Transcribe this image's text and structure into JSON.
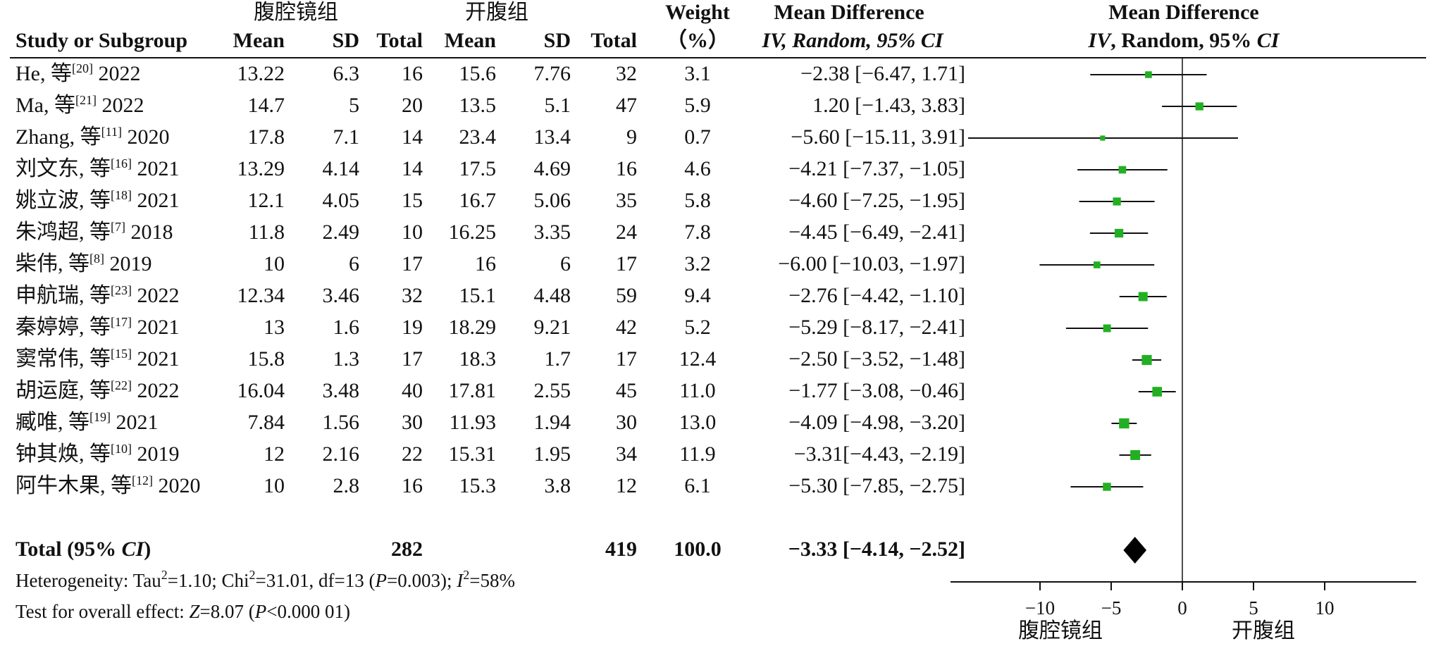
{
  "header": {
    "group_exp": "腹腔镜组",
    "group_ctl": "开腹组",
    "study_col": "Study or Subgroup",
    "mean": "Mean",
    "sd": "SD",
    "total": "Total",
    "weight": "Weight",
    "weight_unit": "（%）",
    "md_title": "Mean Difference",
    "md_method_iv": "IV",
    "md_method_rest": ", Random, 95% ",
    "md_method_ci": "CI",
    "plot_title": "Mean Difference",
    "plot_method_iv": "IV",
    "plot_method_rest": ", Random, 95% ",
    "plot_method_ci": "CI"
  },
  "studies": [
    {
      "author": "He, 等",
      "ref": "[20]",
      "year": "2022",
      "exp_mean": "13.22",
      "exp_sd": "6.3",
      "exp_total": "16",
      "ctl_mean": "15.6",
      "ctl_sd": "7.76",
      "ctl_total": "32",
      "weight": "3.1",
      "md_text": "−2.38 [−6.47, 1.71]"
    },
    {
      "author": "Ma, 等",
      "ref": "[21]",
      "year": "2022",
      "exp_mean": "14.7",
      "exp_sd": "5",
      "exp_total": "20",
      "ctl_mean": "13.5",
      "ctl_sd": "5.1",
      "ctl_total": "47",
      "weight": "5.9",
      "md_text": "1.20 [−1.43, 3.83]"
    },
    {
      "author": "Zhang, 等",
      "ref": "[11]",
      "year": "2020",
      "exp_mean": "17.8",
      "exp_sd": "7.1",
      "exp_total": "14",
      "ctl_mean": "23.4",
      "ctl_sd": "13.4",
      "ctl_total": "9",
      "weight": "0.7",
      "md_text": "−5.60 [−15.11, 3.91]"
    },
    {
      "author": "刘文东, 等",
      "ref": "[16]",
      "year": "2021",
      "exp_mean": "13.29",
      "exp_sd": "4.14",
      "exp_total": "14",
      "ctl_mean": "17.5",
      "ctl_sd": "4.69",
      "ctl_total": "16",
      "weight": "4.6",
      "md_text": "−4.21 [−7.37, −1.05]"
    },
    {
      "author": "姚立波, 等",
      "ref": "[18]",
      "year": "2021",
      "exp_mean": "12.1",
      "exp_sd": "4.05",
      "exp_total": "15",
      "ctl_mean": "16.7",
      "ctl_sd": "5.06",
      "ctl_total": "35",
      "weight": "5.8",
      "md_text": "−4.60 [−7.25, −1.95]"
    },
    {
      "author": "朱鸿超, 等",
      "ref": "[7]",
      "year": "2018",
      "exp_mean": "11.8",
      "exp_sd": "2.49",
      "exp_total": "10",
      "ctl_mean": "16.25",
      "ctl_sd": "3.35",
      "ctl_total": "24",
      "weight": "7.8",
      "md_text": "−4.45 [−6.49, −2.41]"
    },
    {
      "author": "柴伟, 等",
      "ref": "[8]",
      "year": "2019",
      "exp_mean": "10",
      "exp_sd": "6",
      "exp_total": "17",
      "ctl_mean": "16",
      "ctl_sd": "6",
      "ctl_total": "17",
      "weight": "3.2",
      "md_text": "−6.00 [−10.03, −1.97]"
    },
    {
      "author": "申航瑞, 等",
      "ref": "[23]",
      "year": "2022",
      "exp_mean": "12.34",
      "exp_sd": "3.46",
      "exp_total": "32",
      "ctl_mean": "15.1",
      "ctl_sd": "4.48",
      "ctl_total": "59",
      "weight": "9.4",
      "md_text": "−2.76 [−4.42, −1.10]"
    },
    {
      "author": "秦婷婷, 等",
      "ref": "[17]",
      "year": "2021",
      "exp_mean": "13",
      "exp_sd": "1.6",
      "exp_total": "19",
      "ctl_mean": "18.29",
      "ctl_sd": "9.21",
      "ctl_total": "42",
      "weight": "5.2",
      "md_text": "−5.29 [−8.17, −2.41]"
    },
    {
      "author": "窦常伟, 等",
      "ref": "[15]",
      "year": "2021",
      "exp_mean": "15.8",
      "exp_sd": "1.3",
      "exp_total": "17",
      "ctl_mean": "18.3",
      "ctl_sd": "1.7",
      "ctl_total": "17",
      "weight": "12.4",
      "md_text": "−2.50 [−3.52, −1.48]"
    },
    {
      "author": "胡运庭, 等",
      "ref": "[22]",
      "year": "2022",
      "exp_mean": "16.04",
      "exp_sd": "3.48",
      "exp_total": "40",
      "ctl_mean": "17.81",
      "ctl_sd": "2.55",
      "ctl_total": "45",
      "weight": "11.0",
      "md_text": "−1.77 [−3.08, −0.46]"
    },
    {
      "author": "臧唯, 等",
      "ref": "[19]",
      "year": "2021",
      "exp_mean": "7.84",
      "exp_sd": "1.56",
      "exp_total": "30",
      "ctl_mean": "11.93",
      "ctl_sd": "1.94",
      "ctl_total": "30",
      "weight": "13.0",
      "md_text": "−4.09 [−4.98, −3.20]"
    },
    {
      "author": "钟其焕, 等",
      "ref": "[10]",
      "year": "2019",
      "exp_mean": "12",
      "exp_sd": "2.16",
      "exp_total": "22",
      "ctl_mean": "15.31",
      "ctl_sd": "1.95",
      "ctl_total": "34",
      "weight": "11.9",
      "md_text": "−3.31[−4.43, −2.19]"
    },
    {
      "author": "阿牛木果, 等",
      "ref": "[12]",
      "year": "2020",
      "exp_mean": "10",
      "exp_sd": "2.8",
      "exp_total": "16",
      "ctl_mean": "15.3",
      "ctl_sd": "3.8",
      "ctl_total": "12",
      "weight": "6.1",
      "md_text": "−5.30 [−7.85, −2.75]"
    }
  ],
  "total": {
    "label_a": "Total (95% ",
    "label_ci": "CI",
    "label_b": ")",
    "exp_total": "282",
    "ctl_total": "419",
    "weight": "100.0",
    "md_text": "−3.33 [−4.14, −2.52]"
  },
  "heterogeneity": {
    "p1": "Heterogeneity: Tau",
    "p2": "=1.10; Chi",
    "p3": "=31.01, df=13 (",
    "p4": "P",
    "p5": "=0.003); ",
    "p6": "I",
    "p7": "=58%",
    "sup": "2"
  },
  "overall": {
    "p1": "Test for overall effect: ",
    "p2": "Z",
    "p3": "=8.07 (",
    "p4": "P",
    "p5": "<0.000 01)"
  },
  "axis_footer": {
    "left_label": "腹腔镜组",
    "right_label": "开腹组"
  },
  "colors": {
    "marker": "#22b022",
    "line": "#111111",
    "diamond": "#000000"
  },
  "chart_data": {
    "type": "forest",
    "measure": "Mean Difference",
    "method": "IV, Random, 95% CI",
    "x_range": [
      -15,
      15
    ],
    "x_ticks": [
      -10,
      -5,
      0,
      5,
      10
    ],
    "x_tick_labels": [
      "−10",
      "−5",
      "0",
      "5",
      "10"
    ],
    "favours_left": "腹腔镜组",
    "favours_right": "开腹组",
    "studies": [
      {
        "study": "He, 等 2022",
        "md": -2.38,
        "lo": -6.47,
        "hi": 1.71,
        "weight": 3.1
      },
      {
        "study": "Ma, 等 2022",
        "md": 1.2,
        "lo": -1.43,
        "hi": 3.83,
        "weight": 5.9
      },
      {
        "study": "Zhang, 等 2020",
        "md": -5.6,
        "lo": -15.11,
        "hi": 3.91,
        "weight": 0.7
      },
      {
        "study": "刘文东, 等 2021",
        "md": -4.21,
        "lo": -7.37,
        "hi": -1.05,
        "weight": 4.6
      },
      {
        "study": "姚立波, 等 2021",
        "md": -4.6,
        "lo": -7.25,
        "hi": -1.95,
        "weight": 5.8
      },
      {
        "study": "朱鸿超, 等 2018",
        "md": -4.45,
        "lo": -6.49,
        "hi": -2.41,
        "weight": 7.8
      },
      {
        "study": "柴伟, 等 2019",
        "md": -6.0,
        "lo": -10.03,
        "hi": -1.97,
        "weight": 3.2
      },
      {
        "study": "申航瑞, 等 2022",
        "md": -2.76,
        "lo": -4.42,
        "hi": -1.1,
        "weight": 9.4
      },
      {
        "study": "秦婷婷, 等 2021",
        "md": -5.29,
        "lo": -8.17,
        "hi": -2.41,
        "weight": 5.2
      },
      {
        "study": "窦常伟, 等 2021",
        "md": -2.5,
        "lo": -3.52,
        "hi": -1.48,
        "weight": 12.4
      },
      {
        "study": "胡运庭, 等 2022",
        "md": -1.77,
        "lo": -3.08,
        "hi": -0.46,
        "weight": 11.0
      },
      {
        "study": "臧唯, 等 2021",
        "md": -4.09,
        "lo": -4.98,
        "hi": -3.2,
        "weight": 13.0
      },
      {
        "study": "钟其焕, 等 2019",
        "md": -3.31,
        "lo": -4.43,
        "hi": -2.19,
        "weight": 11.9
      },
      {
        "study": "阿牛木果, 等 2020",
        "md": -5.3,
        "lo": -7.85,
        "hi": -2.75,
        "weight": 6.1
      }
    ],
    "pooled": {
      "md": -3.33,
      "lo": -4.14,
      "hi": -2.52,
      "weight": 100.0
    }
  }
}
